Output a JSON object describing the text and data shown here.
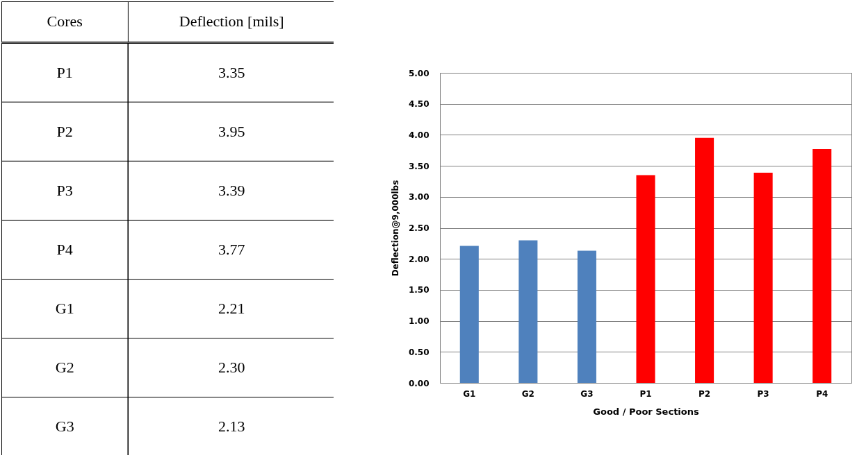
{
  "chart_data": [
    {
      "type": "other",
      "value_labels": [
        "3.35",
        "3.95",
        "3.39",
        "3.77",
        "2.21",
        "2.30",
        "2.13"
      ],
      "xlabel": "Cores",
      "ylabel": "Deflection [mils]",
      "categories": [
        "P1",
        "P2",
        "P3",
        "P4",
        "G1",
        "G2",
        "G3"
      ],
      "values": [
        3.35,
        3.95,
        3.39,
        3.77,
        2.21,
        2.3,
        2.13
      ]
    },
    {
      "type": "bar",
      "xlabel": "Good / Poor Sections",
      "ylabel": "Deflection@9,000lbs",
      "categories": [
        "G1",
        "G2",
        "G3",
        "P1",
        "P2",
        "P3",
        "P4"
      ],
      "values": [
        2.21,
        2.3,
        2.13,
        3.35,
        3.95,
        3.39,
        3.77
      ],
      "colors": [
        "#4f81bd",
        "#4f81bd",
        "#4f81bd",
        "#ff0000",
        "#ff0000",
        "#ff0000",
        "#ff0000"
      ],
      "ylim": [
        0,
        5
      ],
      "yticks": [
        {
          "value": 0,
          "label": "0.00"
        },
        {
          "value": 0.5,
          "label": "0.50"
        },
        {
          "value": 1,
          "label": "1.00"
        },
        {
          "value": 1.5,
          "label": "1.50"
        },
        {
          "value": 2,
          "label": "2.00"
        },
        {
          "value": 2.5,
          "label": "2.50"
        },
        {
          "value": 3,
          "label": "3.00"
        },
        {
          "value": 3.5,
          "label": "3.50"
        },
        {
          "value": 4,
          "label": "4.00"
        },
        {
          "value": 4.5,
          "label": "4.50"
        },
        {
          "value": 5,
          "label": "5.00"
        }
      ],
      "grid": "y"
    }
  ]
}
